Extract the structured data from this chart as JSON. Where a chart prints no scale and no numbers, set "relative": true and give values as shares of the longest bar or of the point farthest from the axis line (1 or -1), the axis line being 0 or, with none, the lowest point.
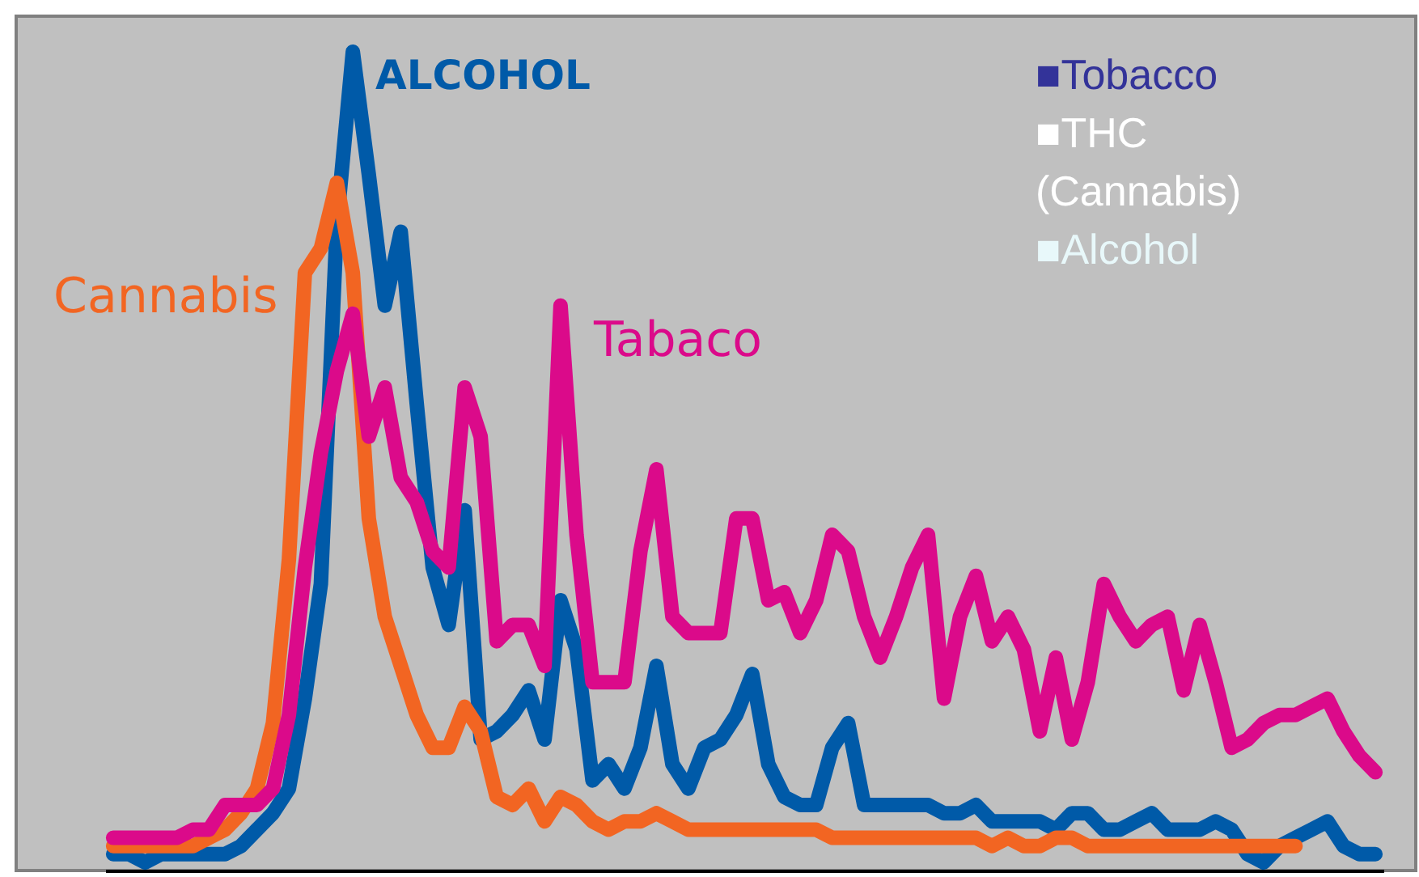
{
  "chart_data": {
    "type": "line",
    "relative": true,
    "grid": false,
    "line_style": "solid",
    "marker": "none",
    "categories": [
      null,
      null,
      null,
      null,
      null,
      null,
      null,
      null,
      null,
      null,
      null,
      null,
      null,
      null,
      null,
      null,
      null,
      null,
      null,
      null,
      null,
      null,
      null,
      null,
      null,
      null,
      null,
      null,
      null,
      null,
      null,
      null,
      null,
      null,
      null,
      null,
      null,
      null,
      null,
      null,
      null,
      null,
      null,
      null,
      null,
      null,
      null,
      null,
      null,
      null,
      null,
      null,
      null,
      null,
      null,
      null,
      null,
      null,
      null,
      null,
      null,
      null,
      null,
      null,
      null,
      null,
      null,
      null,
      null,
      null,
      null,
      null,
      null,
      null,
      null,
      null,
      null,
      null,
      null,
      null
    ],
    "series": [
      {
        "name": "ALCOHOL",
        "color": "#005aa8",
        "values": [
          0.02,
          0.02,
          0.01,
          0.02,
          0.02,
          0.02,
          0.02,
          0.02,
          0.03,
          0.05,
          0.07,
          0.1,
          0.21,
          0.35,
          0.79,
          1.0,
          0.85,
          0.69,
          0.78,
          0.57,
          0.37,
          0.3,
          0.44,
          0.16,
          0.17,
          0.19,
          0.22,
          0.16,
          0.33,
          0.27,
          0.11,
          0.13,
          0.1,
          0.15,
          0.25,
          0.13,
          0.1,
          0.15,
          0.16,
          0.19,
          0.24,
          0.13,
          0.09,
          0.08,
          0.08,
          0.15,
          0.18,
          0.08,
          0.08,
          0.08,
          0.08,
          0.08,
          0.07,
          0.07,
          0.08,
          0.06,
          0.06,
          0.06,
          0.06,
          0.05,
          0.07,
          0.07,
          0.05,
          0.05,
          0.06,
          0.07,
          0.05,
          0.05,
          0.05,
          0.06,
          0.05,
          0.02,
          0.01,
          0.03,
          0.04,
          0.05,
          0.06,
          0.03,
          0.02,
          0.02
        ]
      },
      {
        "name": "Cannabis",
        "color": "#f26522",
        "values": [
          0.03,
          0.03,
          0.03,
          0.03,
          0.03,
          0.03,
          0.04,
          0.05,
          0.07,
          0.1,
          0.18,
          0.38,
          0.73,
          0.76,
          0.84,
          0.73,
          0.43,
          0.31,
          0.25,
          0.19,
          0.15,
          0.15,
          0.2,
          0.17,
          0.09,
          0.08,
          0.1,
          0.06,
          0.09,
          0.08,
          0.06,
          0.05,
          0.06,
          0.06,
          0.07,
          0.06,
          0.05,
          0.05,
          0.05,
          0.05,
          0.05,
          0.05,
          0.05,
          0.05,
          0.05,
          0.04,
          0.04,
          0.04,
          0.04,
          0.04,
          0.04,
          0.04,
          0.04,
          0.04,
          0.04,
          0.03,
          0.04,
          0.03,
          0.03,
          0.04,
          0.04,
          0.03,
          0.03,
          0.03,
          0.03,
          0.03,
          0.03,
          0.03,
          0.03,
          0.03,
          0.03,
          0.03,
          0.03,
          0.03,
          0.03,
          null,
          null,
          null,
          null,
          null
        ]
      },
      {
        "name": "Tabaco",
        "color": "#db0a8a",
        "values": [
          0.04,
          0.04,
          0.04,
          0.04,
          0.04,
          0.05,
          0.05,
          0.08,
          0.08,
          0.08,
          0.1,
          0.19,
          0.37,
          0.51,
          0.61,
          0.68,
          0.53,
          0.59,
          0.48,
          0.45,
          0.39,
          0.37,
          0.59,
          0.53,
          0.28,
          0.3,
          0.3,
          0.25,
          0.69,
          0.41,
          0.23,
          0.23,
          0.23,
          0.39,
          0.49,
          0.31,
          0.29,
          0.29,
          0.29,
          0.43,
          0.43,
          0.33,
          0.34,
          0.29,
          0.33,
          0.41,
          0.39,
          0.31,
          0.26,
          0.31,
          0.37,
          0.41,
          0.21,
          0.31,
          0.36,
          0.28,
          0.31,
          0.27,
          0.17,
          0.26,
          0.16,
          0.23,
          0.35,
          0.31,
          0.28,
          0.3,
          0.31,
          0.22,
          0.3,
          0.23,
          0.15,
          0.16,
          0.18,
          0.19,
          0.19,
          0.2,
          0.21,
          0.17,
          0.14,
          0.12
        ]
      }
    ],
    "annotations": [
      "■Tobacco",
      "■THC\n(Cannabis)",
      "■Alcohol"
    ]
  }
}
